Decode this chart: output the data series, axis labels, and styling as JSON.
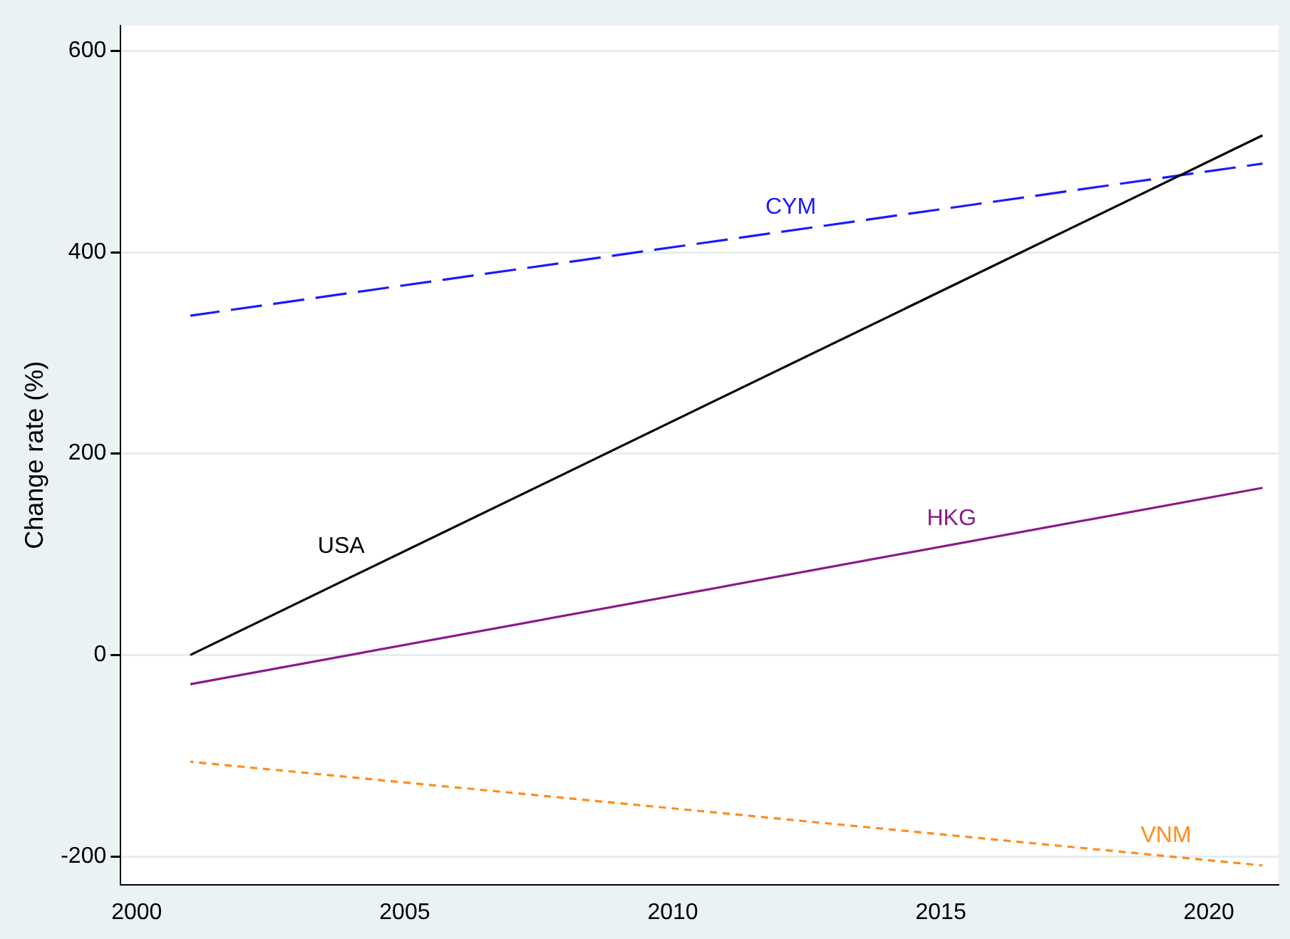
{
  "chart_data": {
    "type": "line",
    "ylabel": "Change rate (%)",
    "x": [
      2001,
      2021
    ],
    "series": [
      {
        "name": "USA",
        "color": "#000000",
        "values": [
          0,
          516
        ],
        "line_style": "solid"
      },
      {
        "name": "CYM",
        "color": "#1a1aff",
        "values": [
          337,
          488
        ],
        "line_style": "dashed"
      },
      {
        "name": "HKG",
        "color": "#8b1a89",
        "values": [
          -29,
          166
        ],
        "line_style": "solid"
      },
      {
        "name": "VNM",
        "color": "#ff8c1a",
        "values": [
          -106,
          -209
        ],
        "line_style": "dotted"
      }
    ],
    "xlim": [
      1999.7,
      2021.3
    ],
    "xticks": [
      2000,
      2005,
      2010,
      2015,
      2020
    ],
    "ylim": [
      -228,
      625
    ],
    "yticks": [
      -200,
      0,
      200,
      400,
      600
    ],
    "grid": "y",
    "legend": false,
    "marker": "none"
  }
}
